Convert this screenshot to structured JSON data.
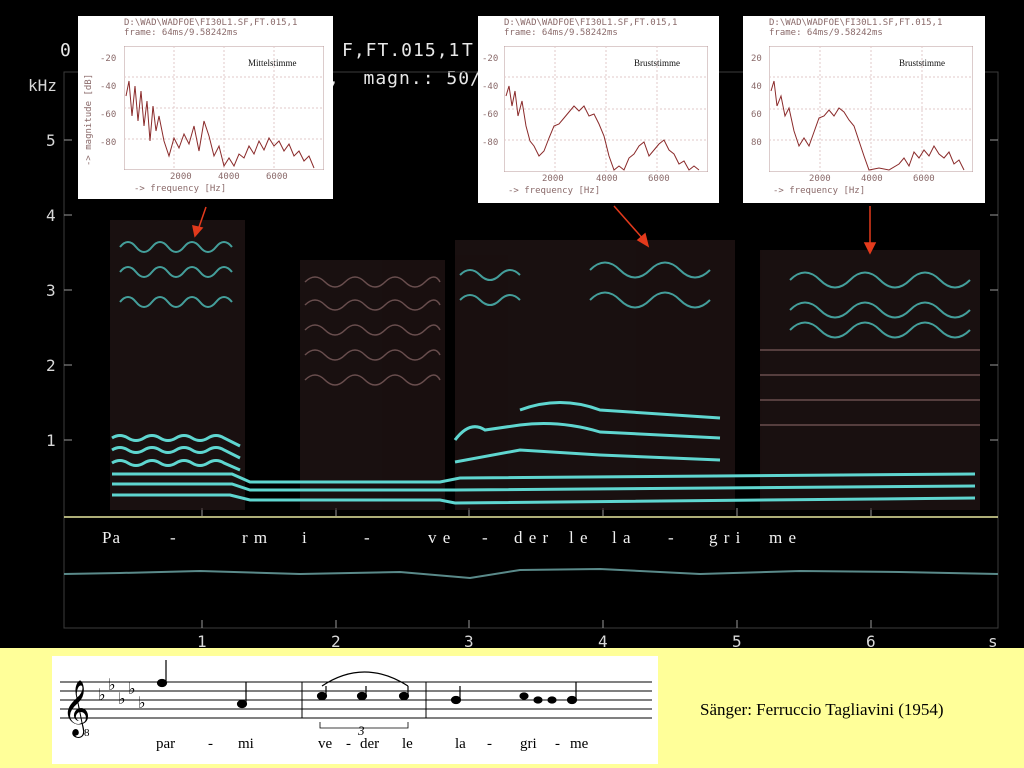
{
  "header": {
    "left_fragment": "0",
    "file_fragment": "F,FT.015,1",
    "t_fragment": "T",
    "magn_fragment": ",  magn.: 50/"
  },
  "axes": {
    "y_unit": "kHz",
    "y_ticks": [
      "5",
      "4",
      "3",
      "2",
      "1"
    ],
    "x_ticks": [
      "1",
      "2",
      "3",
      "4",
      "5",
      "6"
    ],
    "x_unit": "s"
  },
  "insets": [
    {
      "path": "D:\\WAD\\WADFOE\\FI30L1.SF,FT.015,1",
      "frame": "frame: 64ms/9.58242ms",
      "label": "Mittelstimme",
      "y_label": "-> magnitude [dB]",
      "y_ticks": [
        "-20",
        "-40",
        "-60",
        "-80"
      ],
      "x_ticks": [
        "2000",
        "4000",
        "6000"
      ],
      "x_label": "-> frequency [Hz]"
    },
    {
      "path": "D:\\WAD\\WADFOE\\FI30L1.SF,FT.015,1",
      "frame": "frame: 64ms/9.58242ms",
      "label": "Bruststimme",
      "y_label": "",
      "y_ticks": [
        "-20",
        "-40",
        "-60",
        "-80"
      ],
      "x_ticks": [
        "2000",
        "4000",
        "6000"
      ],
      "x_label": "-> frequency [Hz]"
    },
    {
      "path": "D:\\WAD\\WADFOE\\FI30L1.SF,FT.015,1",
      "frame": "frame: 64ms/9.58242ms",
      "label": "Bruststimme",
      "y_label": "",
      "y_ticks": [
        "20",
        "40",
        "60",
        "80"
      ],
      "x_ticks": [
        "2000",
        "4000",
        "6000"
      ],
      "x_label": "-> frequency [Hz]"
    }
  ],
  "lyrics_strip": [
    "Pa",
    "-",
    "r m",
    "i",
    "-",
    "v e",
    "-",
    "d e r",
    "l e",
    "l a",
    "-",
    "g r i",
    "m e"
  ],
  "score": {
    "syllables": [
      "par",
      "-",
      "mi",
      "ve",
      "-",
      "der",
      "le",
      "la",
      "-",
      "gri",
      "-",
      "me"
    ],
    "tuplet": "3",
    "octave_mark": "8"
  },
  "caption": "Sänger: Ferruccio Tagliavini (1954)",
  "colors": {
    "background": "#000000",
    "formant": "#5fd6d0",
    "inset_trace": "#8a2a2a",
    "arrow": "#e33a1c",
    "caption_band": "#ffff99"
  }
}
